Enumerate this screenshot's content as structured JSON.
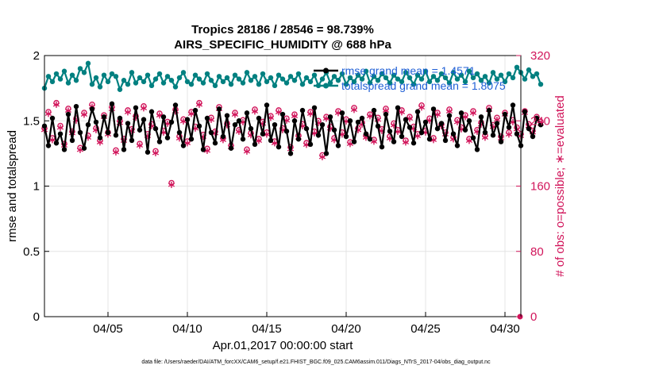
{
  "chart_data": {
    "type": "line",
    "title": "Tropics 28186 / 28546 = 98.739%",
    "subtitle": "AIRS_SPECIFIC_HUMIDITY @ 688 hPa",
    "xlabel": "Apr.01,2017 00:00:00 start",
    "ylabel": "rmse and totalspread",
    "y2label": "# of obs: o=possible; ∗=evaluated",
    "xlim": [
      1,
      31
    ],
    "ylim": [
      0,
      2
    ],
    "y2lim": [
      0,
      320
    ],
    "xticks": [
      5,
      10,
      15,
      20,
      25,
      30
    ],
    "xtick_labels": [
      "04/05",
      "04/10",
      "04/15",
      "04/20",
      "04/25",
      "04/30"
    ],
    "yticks": [
      "0",
      "0.5",
      "1",
      "1.5",
      "2"
    ],
    "y2ticks": [
      "0",
      "80",
      "160",
      "240",
      "320"
    ],
    "colors": {
      "rmse": "#000000",
      "spread": "#008080",
      "obs": "#d1145a",
      "legend_text": "#1f5fd6",
      "grid": "#e4e4e4"
    },
    "series": [
      {
        "name": "rmse grand mean = 1.4571",
        "axis": "left",
        "style": "line-dot",
        "values": [
          1.46,
          1.31,
          1.52,
          1.33,
          1.4,
          1.28,
          1.55,
          1.35,
          1.61,
          1.41,
          1.29,
          1.47,
          1.59,
          1.49,
          1.37,
          1.53,
          1.41,
          1.63,
          1.39,
          1.52,
          1.28,
          1.48,
          1.35,
          1.6,
          1.43,
          1.51,
          1.26,
          1.57,
          1.44,
          1.34,
          1.53,
          1.37,
          1.49,
          1.62,
          1.41,
          1.31,
          1.51,
          1.36,
          1.58,
          1.46,
          1.28,
          1.52,
          1.41,
          1.33,
          1.59,
          1.38,
          1.54,
          1.29,
          1.47,
          1.5,
          1.36,
          1.56,
          1.44,
          1.32,
          1.52,
          1.4,
          1.62,
          1.35,
          1.47,
          1.3,
          1.55,
          1.42,
          1.25,
          1.5,
          1.36,
          1.58,
          1.44,
          1.32,
          1.6,
          1.39,
          1.47,
          1.25,
          1.53,
          1.43,
          1.31,
          1.56,
          1.38,
          1.5,
          1.34,
          1.49,
          1.52,
          1.4,
          1.36,
          1.58,
          1.46,
          1.3,
          1.55,
          1.42,
          1.34,
          1.6,
          1.38,
          1.51,
          1.45,
          1.33,
          1.57,
          1.41,
          1.49,
          1.36,
          1.59,
          1.44,
          1.48,
          1.35,
          1.54,
          1.4,
          1.31,
          1.56,
          1.43,
          1.5,
          1.37,
          1.28,
          1.53,
          1.41,
          1.58,
          1.39,
          1.48,
          1.34,
          1.55,
          1.45,
          1.62,
          1.4,
          1.31,
          1.57,
          1.44,
          1.38,
          1.52,
          1.47
        ]
      },
      {
        "name": "totalspread grand mean = 1.8075",
        "axis": "left",
        "style": "line-dot",
        "values": [
          1.75,
          1.84,
          1.8,
          1.86,
          1.82,
          1.88,
          1.79,
          1.85,
          1.81,
          1.9,
          1.87,
          1.94,
          1.78,
          1.83,
          1.76,
          1.85,
          1.8,
          1.86,
          1.84,
          1.74,
          1.81,
          1.78,
          1.87,
          1.79,
          1.83,
          1.8,
          1.85,
          1.77,
          1.82,
          1.86,
          1.79,
          1.84,
          1.81,
          1.76,
          1.83,
          1.87,
          1.8,
          1.78,
          1.85,
          1.82,
          1.79,
          1.86,
          1.81,
          1.77,
          1.84,
          1.8,
          1.83,
          1.78,
          1.85,
          1.82,
          1.79,
          1.87,
          1.81,
          1.84,
          1.78,
          1.86,
          1.8,
          1.83,
          1.77,
          1.85,
          1.82,
          1.79,
          1.84,
          1.81,
          1.86,
          1.78,
          1.83,
          1.8,
          1.85,
          1.77,
          1.82,
          1.87,
          1.79,
          1.84,
          1.81,
          1.86,
          1.78,
          1.83,
          1.8,
          1.85,
          1.82,
          1.88,
          1.79,
          1.84,
          1.81,
          1.86,
          1.83,
          1.79,
          1.85,
          1.82,
          1.8,
          1.87,
          1.83,
          1.78,
          1.85,
          1.82,
          1.88,
          1.8,
          1.84,
          1.81,
          1.86,
          1.83,
          1.79,
          1.87,
          1.82,
          1.85,
          1.8,
          1.88,
          1.83,
          1.86,
          1.81,
          1.84,
          1.79,
          1.87,
          1.82,
          1.85,
          1.8,
          1.86,
          1.83,
          1.91,
          1.87,
          1.82,
          1.89,
          1.84,
          1.86,
          1.78
        ]
      },
      {
        "name": "possible",
        "axis": "right",
        "style": "marker-o",
        "values": [
          231,
          251,
          219,
          262,
          234,
          212,
          255,
          227,
          243,
          207,
          250,
          222,
          260,
          231,
          216,
          247,
          226,
          257,
          204,
          240,
          218,
          253,
          230,
          246,
          212,
          258,
          224,
          236,
          203,
          249,
          228,
          239,
          164,
          254,
          221,
          242,
          215,
          251,
          233,
          262,
          223,
          206,
          244,
          227,
          257,
          219,
          237,
          210,
          250,
          229,
          241,
          205,
          225,
          254,
          218,
          239,
          226,
          246,
          215,
          253,
          231,
          243,
          208,
          248,
          222,
          236,
          213,
          251,
          227,
          240,
          198,
          245,
          233,
          219,
          252,
          226,
          242,
          214,
          256,
          231,
          238,
          222,
          248,
          217,
          244,
          230,
          255,
          221,
          237,
          229,
          253,
          216,
          245,
          233,
          224,
          259,
          228,
          243,
          219,
          250,
          236,
          226,
          254,
          220,
          241,
          232,
          247,
          218,
          252,
          229,
          238,
          222,
          256,
          235,
          244,
          221,
          250,
          226,
          241,
          232,
          224,
          252,
          236,
          228,
          245,
          239
        ]
      },
      {
        "name": "evaluated",
        "axis": "right",
        "style": "marker-*",
        "values": [
          227,
          247,
          215,
          258,
          230,
          208,
          251,
          223,
          239,
          203,
          246,
          218,
          256,
          227,
          212,
          243,
          222,
          253,
          200,
          236,
          214,
          249,
          226,
          242,
          208,
          254,
          220,
          232,
          199,
          245,
          224,
          235,
          160,
          250,
          217,
          238,
          211,
          247,
          229,
          258,
          219,
          202,
          240,
          223,
          253,
          215,
          233,
          206,
          246,
          225,
          237,
          201,
          221,
          250,
          214,
          235,
          222,
          242,
          211,
          249,
          227,
          239,
          204,
          244,
          218,
          232,
          209,
          247,
          223,
          236,
          194,
          241,
          229,
          215,
          248,
          222,
          238,
          210,
          252,
          227,
          234,
          218,
          244,
          213,
          240,
          226,
          251,
          217,
          233,
          225,
          249,
          212,
          241,
          229,
          220,
          255,
          224,
          239,
          215,
          246,
          232,
          222,
          250,
          216,
          237,
          228,
          243,
          214,
          248,
          225,
          234,
          218,
          252,
          231,
          240,
          217,
          246,
          222,
          237,
          228,
          220,
          248,
          232,
          224,
          241,
          235
        ]
      }
    ],
    "legend": {
      "placement": "top-right",
      "entries": [
        "rmse grand mean = 1.4571",
        "totalspread grand mean = 1.8075"
      ]
    },
    "footer": "data file: /Users/raeder/DAI/ATM_forcXX/CAM6_setup/f.e21.FHIST_BGC.f09_025.CAM6assim.011/Diags_NTrS_2017-04/obs_diag_output.nc"
  }
}
